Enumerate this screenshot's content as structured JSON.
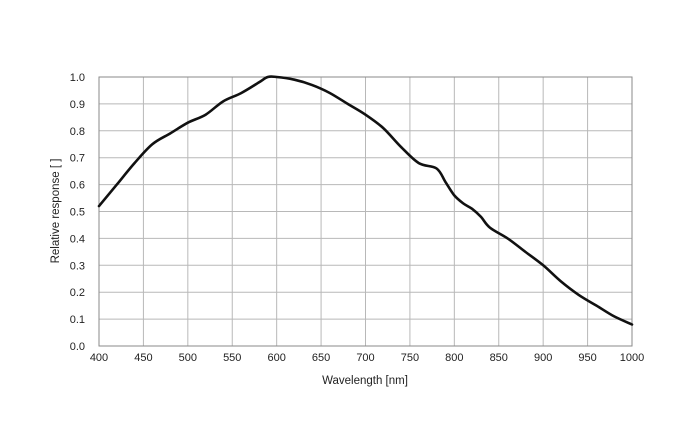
{
  "chart_data": {
    "type": "line",
    "xlabel": "Wavelength [nm]",
    "ylabel": "Relative response [ ]",
    "xlim": [
      400,
      1000
    ],
    "ylim": [
      0.0,
      1.0
    ],
    "grid": true,
    "x_ticks": [
      "400",
      "450",
      "500",
      "550",
      "600",
      "650",
      "700",
      "750",
      "800",
      "850",
      "900",
      "950",
      "1000"
    ],
    "y_ticks": [
      "0.0",
      "0.1",
      "0.2",
      "0.3",
      "0.4",
      "0.5",
      "0.6",
      "0.7",
      "0.8",
      "0.9",
      "1.0"
    ],
    "series": [
      {
        "x": [
          400,
          420,
          440,
          460,
          480,
          500,
          520,
          540,
          560,
          580,
          590,
          600,
          620,
          640,
          660,
          680,
          700,
          720,
          740,
          760,
          780,
          790,
          800,
          810,
          820,
          830,
          840,
          860,
          880,
          900,
          920,
          940,
          960,
          980,
          1000
        ],
        "y": [
          0.52,
          0.6,
          0.68,
          0.75,
          0.79,
          0.83,
          0.86,
          0.91,
          0.94,
          0.98,
          1.0,
          1.0,
          0.99,
          0.97,
          0.94,
          0.9,
          0.86,
          0.81,
          0.74,
          0.68,
          0.66,
          0.61,
          0.56,
          0.53,
          0.51,
          0.48,
          0.44,
          0.4,
          0.35,
          0.3,
          0.24,
          0.19,
          0.15,
          0.11,
          0.08
        ],
        "color": "#111111"
      }
    ]
  }
}
